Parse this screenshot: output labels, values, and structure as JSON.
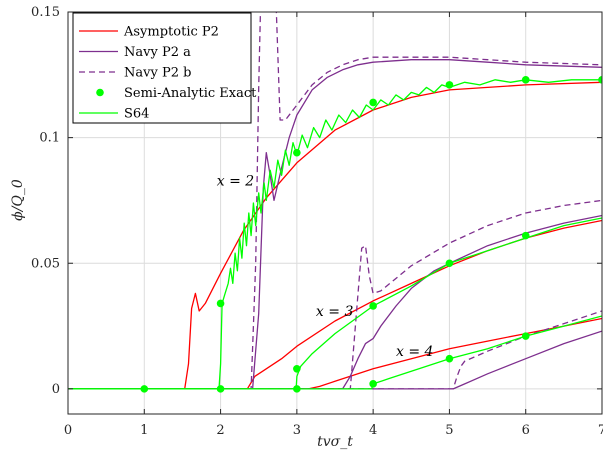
{
  "chart_data": {
    "type": "line",
    "xlabel": "tvσ_t",
    "ylabel": "ϕ/Q_0",
    "xlim": [
      0,
      7
    ],
    "ylim": [
      -0.01,
      0.15
    ],
    "x_ticks": [
      "0",
      "1",
      "2",
      "3",
      "4",
      "5",
      "6",
      "7"
    ],
    "y_ticks": [
      "0",
      "0.05",
      "0.1",
      "0.15"
    ],
    "grid": true,
    "legend_position": "top-left",
    "annotations": [
      {
        "text": "x = 2",
        "x": 1.95,
        "y": 0.081
      },
      {
        "text": "x = 3",
        "x": 3.25,
        "y": 0.029
      },
      {
        "text": "x = 4",
        "x": 4.3,
        "y": 0.013
      }
    ],
    "series": [
      {
        "name": "Asymptotic P2",
        "color": "#ff0000",
        "dash": "solid",
        "curves": [
          [
            [
              0,
              0
            ],
            [
              1.53,
              0
            ],
            [
              1.58,
              0.01
            ],
            [
              1.62,
              0.032
            ],
            [
              1.67,
              0.038
            ],
            [
              1.72,
              0.031
            ],
            [
              1.8,
              0.034
            ],
            [
              2.0,
              0.046
            ],
            [
              2.3,
              0.063
            ],
            [
              2.6,
              0.076
            ],
            [
              3.0,
              0.09
            ],
            [
              3.5,
              0.103
            ],
            [
              4.0,
              0.111
            ],
            [
              4.5,
              0.116
            ],
            [
              5.0,
              0.119
            ],
            [
              5.5,
              0.12
            ],
            [
              6.0,
              0.121
            ],
            [
              7.0,
              0.122
            ]
          ],
          [
            [
              0,
              0
            ],
            [
              2.35,
              0
            ],
            [
              2.45,
              0.005
            ],
            [
              2.55,
              0.007
            ],
            [
              2.8,
              0.012
            ],
            [
              3.0,
              0.017
            ],
            [
              3.5,
              0.027
            ],
            [
              4.0,
              0.035
            ],
            [
              4.5,
              0.042
            ],
            [
              5.0,
              0.049
            ],
            [
              5.5,
              0.055
            ],
            [
              6.0,
              0.06
            ],
            [
              6.5,
              0.064
            ],
            [
              7.0,
              0.067
            ]
          ],
          [
            [
              0,
              0
            ],
            [
              3.15,
              0
            ],
            [
              3.3,
              0.001
            ],
            [
              3.5,
              0.003
            ],
            [
              3.8,
              0.006
            ],
            [
              4.0,
              0.008
            ],
            [
              4.5,
              0.012
            ],
            [
              5.0,
              0.016
            ],
            [
              5.5,
              0.019
            ],
            [
              6.0,
              0.022
            ],
            [
              6.5,
              0.025
            ],
            [
              7.0,
              0.028
            ]
          ]
        ]
      },
      {
        "name": "Navy P2 a",
        "color": "#7e2f8e",
        "dash": "solid",
        "curves": [
          [
            [
              0,
              0
            ],
            [
              2.42,
              0
            ],
            [
              2.5,
              0.03
            ],
            [
              2.56,
              0.08
            ],
            [
              2.6,
              0.094
            ],
            [
              2.65,
              0.085
            ],
            [
              2.7,
              0.075
            ],
            [
              2.8,
              0.088
            ],
            [
              2.9,
              0.1
            ],
            [
              3.0,
              0.109
            ],
            [
              3.2,
              0.119
            ],
            [
              3.4,
              0.124
            ],
            [
              3.6,
              0.127
            ],
            [
              3.8,
              0.129
            ],
            [
              4.0,
              0.13
            ],
            [
              4.5,
              0.131
            ],
            [
              5.0,
              0.131
            ],
            [
              5.5,
              0.13
            ],
            [
              6.0,
              0.129
            ],
            [
              7.0,
              0.128
            ]
          ],
          [
            [
              0,
              0
            ],
            [
              3.6,
              0
            ],
            [
              3.7,
              0.005
            ],
            [
              3.8,
              0.012
            ],
            [
              3.9,
              0.018
            ],
            [
              4.0,
              0.02
            ],
            [
              4.1,
              0.025
            ],
            [
              4.3,
              0.033
            ],
            [
              4.5,
              0.04
            ],
            [
              4.8,
              0.047
            ],
            [
              5.0,
              0.05
            ],
            [
              5.5,
              0.057
            ],
            [
              6.0,
              0.062
            ],
            [
              6.5,
              0.066
            ],
            [
              7.0,
              0.069
            ]
          ],
          [
            [
              0,
              0
            ],
            [
              5.05,
              0
            ],
            [
              5.2,
              0.002
            ],
            [
              5.5,
              0.006
            ],
            [
              6.0,
              0.012
            ],
            [
              6.5,
              0.018
            ],
            [
              7.0,
              0.023
            ]
          ]
        ]
      },
      {
        "name": "Navy P2 b",
        "color": "#7e2f8e",
        "dash": "dashed",
        "curves": [
          [
            [
              0,
              0
            ],
            [
              2.4,
              0
            ],
            [
              2.46,
              0.05
            ],
            [
              2.5,
              0.12
            ],
            [
              2.53,
              0.16
            ],
            [
              2.72,
              0.16
            ],
            [
              2.78,
              0.107
            ],
            [
              2.85,
              0.107
            ],
            [
              3.0,
              0.113
            ],
            [
              3.2,
              0.121
            ],
            [
              3.4,
              0.126
            ],
            [
              3.6,
              0.129
            ],
            [
              3.8,
              0.131
            ],
            [
              4.0,
              0.132
            ],
            [
              4.5,
              0.132
            ],
            [
              5.0,
              0.132
            ],
            [
              5.5,
              0.131
            ],
            [
              6.0,
              0.13
            ],
            [
              7.0,
              0.129
            ]
          ],
          [
            [
              0,
              0
            ],
            [
              3.7,
              0
            ],
            [
              3.78,
              0.03
            ],
            [
              3.85,
              0.056
            ],
            [
              3.9,
              0.057
            ],
            [
              3.95,
              0.045
            ],
            [
              4.0,
              0.038
            ],
            [
              4.1,
              0.039
            ],
            [
              4.5,
              0.049
            ],
            [
              5.0,
              0.058
            ],
            [
              5.5,
              0.065
            ],
            [
              6.0,
              0.07
            ],
            [
              6.5,
              0.073
            ],
            [
              7.0,
              0.075
            ]
          ],
          [
            [
              0,
              0
            ],
            [
              5.05,
              0
            ],
            [
              5.1,
              0.005
            ],
            [
              5.15,
              0.009
            ],
            [
              5.2,
              0.011
            ],
            [
              5.5,
              0.015
            ],
            [
              6.0,
              0.021
            ],
            [
              6.5,
              0.026
            ],
            [
              7.0,
              0.031
            ]
          ]
        ]
      },
      {
        "name": "Semi-Analytic Exact",
        "color": "#00ff00",
        "markers": [
          [
            1.0,
            0
          ],
          [
            2.0,
            0
          ],
          [
            2.0,
            0.034
          ],
          [
            3.0,
            0
          ],
          [
            3.0,
            0.008
          ],
          [
            3.0,
            0.094
          ],
          [
            4.0,
            0.002
          ],
          [
            4.0,
            0.033
          ],
          [
            4.0,
            0.114
          ],
          [
            5.0,
            0.012
          ],
          [
            5.0,
            0.05
          ],
          [
            5.0,
            0.121
          ],
          [
            6.0,
            0.021
          ],
          [
            6.0,
            0.061
          ],
          [
            6.0,
            0.123
          ],
          [
            7.0,
            0.123
          ]
        ]
      },
      {
        "name": "S64",
        "color": "#00ff00",
        "dash": "solid",
        "curves": [
          [
            [
              0,
              0
            ],
            [
              1.98,
              0
            ],
            [
              2.0,
              0.01
            ],
            [
              2.02,
              0.034
            ],
            [
              2.06,
              0.038
            ],
            [
              2.1,
              0.042
            ],
            [
              2.13,
              0.048
            ],
            [
              2.16,
              0.042
            ],
            [
              2.19,
              0.054
            ],
            [
              2.22,
              0.047
            ],
            [
              2.25,
              0.06
            ],
            [
              2.28,
              0.052
            ],
            [
              2.31,
              0.066
            ],
            [
              2.34,
              0.057
            ],
            [
              2.37,
              0.07
            ],
            [
              2.4,
              0.061
            ],
            [
              2.43,
              0.074
            ],
            [
              2.46,
              0.065
            ],
            [
              2.5,
              0.078
            ],
            [
              2.53,
              0.07
            ],
            [
              2.57,
              0.082
            ],
            [
              2.6,
              0.075
            ],
            [
              2.65,
              0.087
            ],
            [
              2.7,
              0.08
            ],
            [
              2.75,
              0.091
            ],
            [
              2.8,
              0.085
            ],
            [
              2.85,
              0.095
            ],
            [
              2.9,
              0.089
            ],
            [
              2.95,
              0.098
            ],
            [
              3.0,
              0.093
            ],
            [
              3.07,
              0.101
            ],
            [
              3.14,
              0.096
            ],
            [
              3.22,
              0.104
            ],
            [
              3.3,
              0.1
            ],
            [
              3.38,
              0.107
            ],
            [
              3.46,
              0.103
            ],
            [
              3.55,
              0.109
            ],
            [
              3.64,
              0.106
            ],
            [
              3.73,
              0.111
            ],
            [
              3.82,
              0.108
            ],
            [
              3.91,
              0.113
            ],
            [
              4.0,
              0.111
            ],
            [
              4.1,
              0.115
            ],
            [
              4.2,
              0.113
            ],
            [
              4.3,
              0.117
            ],
            [
              4.4,
              0.115
            ],
            [
              4.5,
              0.118
            ],
            [
              4.6,
              0.117
            ],
            [
              4.7,
              0.12
            ],
            [
              4.8,
              0.118
            ],
            [
              4.9,
              0.121
            ],
            [
              5.0,
              0.12
            ],
            [
              5.2,
              0.122
            ],
            [
              5.4,
              0.121
            ],
            [
              5.6,
              0.123
            ],
            [
              5.8,
              0.122
            ],
            [
              6.0,
              0.123
            ],
            [
              6.3,
              0.122
            ],
            [
              6.6,
              0.123
            ],
            [
              7.0,
              0.123
            ]
          ],
          [
            [
              0,
              0
            ],
            [
              2.99,
              0
            ],
            [
              3.0,
              0.005
            ],
            [
              3.05,
              0.009
            ],
            [
              3.2,
              0.014
            ],
            [
              3.5,
              0.022
            ],
            [
              4.0,
              0.033
            ],
            [
              4.5,
              0.041
            ],
            [
              5.0,
              0.05
            ],
            [
              5.5,
              0.055
            ],
            [
              6.0,
              0.06
            ],
            [
              6.5,
              0.065
            ],
            [
              7.0,
              0.068
            ]
          ],
          [
            [
              0,
              0
            ],
            [
              3.98,
              0
            ],
            [
              4.0,
              0.002
            ],
            [
              4.2,
              0.004
            ],
            [
              4.5,
              0.007
            ],
            [
              5.0,
              0.012
            ],
            [
              5.5,
              0.016
            ],
            [
              6.0,
              0.021
            ],
            [
              6.5,
              0.025
            ],
            [
              7.0,
              0.029
            ]
          ]
        ]
      }
    ]
  }
}
